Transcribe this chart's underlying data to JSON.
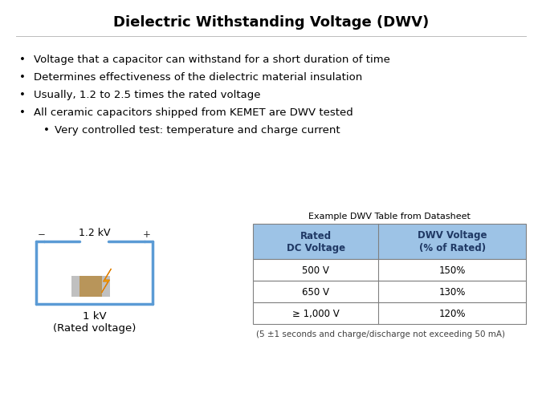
{
  "title": "Dielectric Withstanding Voltage (DWV)",
  "bullet_points": [
    "Voltage that a capacitor can withstand for a short duration of time",
    "Determines effectiveness of the dielectric material insulation",
    "Usually, 1.2 to 2.5 times the rated voltage",
    "All ceramic capacitors shipped from KEMET are DWV tested"
  ],
  "sub_bullet": "Very controlled test: temperature and charge current",
  "table_title": "Example DWV Table from Datasheet",
  "table_header": [
    "Rated\nDC Voltage",
    "DWV Voltage\n(% of Rated)"
  ],
  "table_rows": [
    [
      "500 V",
      "150%"
    ],
    [
      "650 V",
      "130%"
    ],
    [
      "≥ 1,000 V",
      "120%"
    ]
  ],
  "table_header_color": "#9DC3E6",
  "table_header_text_color": "#1F3864",
  "table_border_color": "#808080",
  "table_row_bg": "#FFFFFF",
  "footnote": "(5 ±1 seconds and charge/discharge not exceeding 50 mA)",
  "circuit_voltage_label": "1.2 kV",
  "circuit_rated_label": "1 kV\n(Rated voltage)",
  "circuit_color": "#5B9BD5",
  "background_color": "#FFFFFF",
  "title_fontsize": 13,
  "bullet_fontsize": 9.5,
  "table_fontsize": 9
}
